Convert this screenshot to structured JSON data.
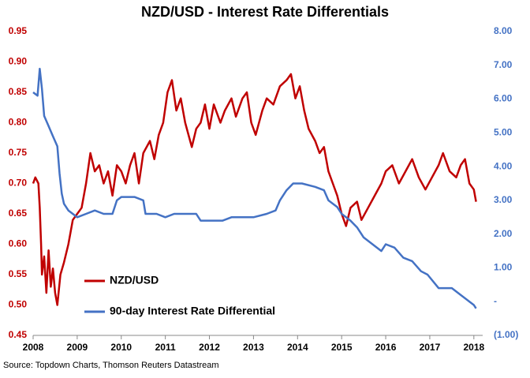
{
  "chart_data": {
    "type": "line",
    "title": "NZD/USD - Interest Rate Differentials",
    "source": "Source: Topdown Charts, Thomson Reuters Datastream",
    "xlim": [
      2008,
      2018.2
    ],
    "xticks": [
      2008,
      2009,
      2010,
      2011,
      2012,
      2013,
      2014,
      2015,
      2016,
      2017,
      2018
    ],
    "ylim": [
      0.45,
      0.95
    ],
    "yticks": [
      0.45,
      {
        "value": 0.5,
        "label": "0.50"
      },
      0.55,
      {
        "value": 0.6,
        "label": "0.60"
      },
      0.65,
      {
        "value": 0.7,
        "label": "0.70"
      },
      0.75,
      {
        "value": 0.8,
        "label": "0.80"
      },
      0.85,
      {
        "value": 0.9,
        "label": "0.90"
      },
      0.95
    ],
    "y2lim": [
      -1,
      8
    ],
    "y2ticks": [
      {
        "value": -1,
        "label": "(1.00)"
      },
      {
        "value": 0,
        "label": "-"
      },
      {
        "value": 1,
        "label": "1.00"
      },
      {
        "value": 2,
        "label": "2.00"
      },
      {
        "value": 3,
        "label": "3.00"
      },
      {
        "value": 4,
        "label": "4.00"
      },
      {
        "value": 5,
        "label": "5.00"
      },
      {
        "value": 6,
        "label": "6.00"
      },
      {
        "value": 7,
        "label": "7.00"
      },
      {
        "value": 8,
        "label": "8.00"
      }
    ],
    "legend": "lower left",
    "series": [
      {
        "name": "NZD/USD",
        "color": "#c00000",
        "x": [
          2008.0,
          2008.05,
          2008.12,
          2008.15,
          2008.18,
          2008.2,
          2008.25,
          2008.3,
          2008.35,
          2008.4,
          2008.45,
          2008.5,
          2008.55,
          2008.62,
          2008.7,
          2008.8,
          2008.9,
          2009.0,
          2009.1,
          2009.2,
          2009.3,
          2009.4,
          2009.5,
          2009.6,
          2009.7,
          2009.8,
          2009.9,
          2010.0,
          2010.1,
          2010.2,
          2010.3,
          2010.4,
          2010.5,
          2010.65,
          2010.75,
          2010.85,
          2010.95,
          2011.05,
          2011.15,
          2011.25,
          2011.35,
          2011.45,
          2011.6,
          2011.7,
          2011.8,
          2011.9,
          2012.0,
          2012.1,
          2012.25,
          2012.35,
          2012.5,
          2012.6,
          2012.75,
          2012.85,
          2012.95,
          2013.05,
          2013.2,
          2013.3,
          2013.45,
          2013.6,
          2013.75,
          2013.85,
          2013.95,
          2014.05,
          2014.15,
          2014.25,
          2014.4,
          2014.5,
          2014.6,
          2014.7,
          2014.8,
          2014.9,
          2015.0,
          2015.1,
          2015.2,
          2015.35,
          2015.45,
          2015.6,
          2015.75,
          2015.9,
          2016.0,
          2016.15,
          2016.3,
          2016.45,
          2016.6,
          2016.75,
          2016.9,
          2017.05,
          2017.2,
          2017.3,
          2017.45,
          2017.6,
          2017.7,
          2017.8,
          2017.9,
          2018.0,
          2018.05
        ],
        "values": [
          0.7,
          0.71,
          0.7,
          0.66,
          0.6,
          0.55,
          0.58,
          0.52,
          0.59,
          0.53,
          0.56,
          0.52,
          0.5,
          0.55,
          0.57,
          0.6,
          0.64,
          0.65,
          0.66,
          0.7,
          0.75,
          0.72,
          0.73,
          0.7,
          0.72,
          0.68,
          0.73,
          0.72,
          0.7,
          0.73,
          0.75,
          0.7,
          0.75,
          0.77,
          0.74,
          0.78,
          0.8,
          0.85,
          0.87,
          0.82,
          0.84,
          0.8,
          0.76,
          0.79,
          0.8,
          0.83,
          0.79,
          0.83,
          0.8,
          0.82,
          0.84,
          0.81,
          0.84,
          0.85,
          0.8,
          0.78,
          0.82,
          0.84,
          0.83,
          0.86,
          0.87,
          0.88,
          0.84,
          0.86,
          0.82,
          0.79,
          0.77,
          0.75,
          0.76,
          0.72,
          0.7,
          0.68,
          0.65,
          0.63,
          0.66,
          0.67,
          0.64,
          0.66,
          0.68,
          0.7,
          0.72,
          0.73,
          0.7,
          0.72,
          0.74,
          0.71,
          0.69,
          0.71,
          0.73,
          0.75,
          0.72,
          0.71,
          0.73,
          0.74,
          0.7,
          0.69,
          0.67
        ]
      },
      {
        "name": "90-day Interest Rate Differential",
        "color": "#4472c4",
        "axis": "y2",
        "x": [
          2008.0,
          2008.1,
          2008.15,
          2008.2,
          2008.25,
          2008.35,
          2008.45,
          2008.55,
          2008.6,
          2008.65,
          2008.7,
          2008.8,
          2009.0,
          2009.2,
          2009.4,
          2009.6,
          2009.8,
          2009.9,
          2010.0,
          2010.3,
          2010.5,
          2010.55,
          2010.8,
          2011.0,
          2011.2,
          2011.5,
          2011.7,
          2011.8,
          2012.0,
          2012.3,
          2012.5,
          2012.8,
          2013.0,
          2013.3,
          2013.5,
          2013.6,
          2013.75,
          2013.9,
          2014.1,
          2014.4,
          2014.6,
          2014.7,
          2014.9,
          2015.0,
          2015.2,
          2015.35,
          2015.5,
          2015.7,
          2015.9,
          2016.0,
          2016.2,
          2016.4,
          2016.6,
          2016.8,
          2016.95,
          2017.2,
          2017.5,
          2017.7,
          2017.9,
          2018.0,
          2018.05
        ],
        "values": [
          6.2,
          6.1,
          6.9,
          6.3,
          5.5,
          5.2,
          4.9,
          4.6,
          3.8,
          3.2,
          2.9,
          2.7,
          2.5,
          2.6,
          2.7,
          2.6,
          2.6,
          3.0,
          3.1,
          3.1,
          3.0,
          2.6,
          2.6,
          2.5,
          2.6,
          2.6,
          2.6,
          2.4,
          2.4,
          2.4,
          2.5,
          2.5,
          2.5,
          2.6,
          2.7,
          3.0,
          3.3,
          3.5,
          3.5,
          3.4,
          3.3,
          3.0,
          2.8,
          2.6,
          2.4,
          2.2,
          1.9,
          1.7,
          1.5,
          1.7,
          1.6,
          1.3,
          1.2,
          0.9,
          0.8,
          0.4,
          0.4,
          0.2,
          0.0,
          -0.1,
          -0.2
        ]
      }
    ]
  }
}
